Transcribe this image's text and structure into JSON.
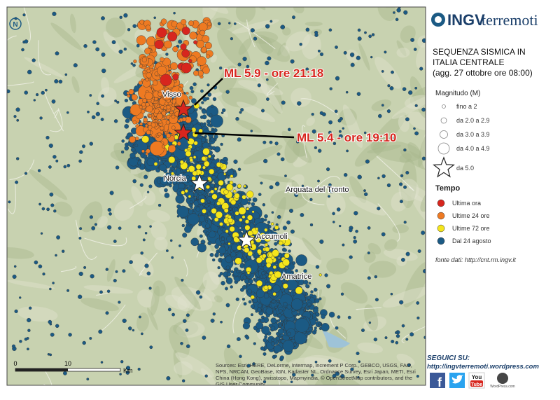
{
  "header": {
    "logo_prefix": "INGV",
    "logo_suffix": "terremoti",
    "title_line1": "SEQUENZA SISMICA IN",
    "title_line2": "ITALIA CENTRALE",
    "update": "(agg. 27 ottobre ore 08:00)"
  },
  "legend": {
    "magnitude_title": "Magnitudo (M)",
    "magnitude": [
      "fino a 2",
      "da 2.0 a 2.9",
      "da 3.0 a 3.9",
      "da 4.0 a 4.9",
      "da 5.0"
    ],
    "time_title": "Tempo",
    "time": [
      {
        "label": "Ultima ora",
        "color": "#d7261e"
      },
      {
        "label": "Ultime 24 ore",
        "color": "#ee7a22"
      },
      {
        "label": "Ultime 72 ore",
        "color": "#f4e51c"
      },
      {
        "label": "Dal 24 agosto",
        "color": "#1b5a84"
      }
    ]
  },
  "source": "fonte dati: http://cnt.rm.ingv.it",
  "follow": {
    "title": "SEGUICI SU:",
    "url": "http://ingvterremoti.wordpress.com",
    "facebook": "f",
    "youtube_top": "You",
    "youtube_bottom": "Tube",
    "wordpress": "WordPress.com"
  },
  "map": {
    "north": "N",
    "annotations": [
      "ML 5.9 - ore 21:18",
      "ML 5.4 - ore 19:10"
    ],
    "places": [
      "Visso",
      "Norcia",
      "Arquata del Tronto",
      "Accumoli",
      "Amatrice"
    ],
    "scale": [
      "0",
      "10",
      "Km"
    ],
    "attribution": [
      "Sources: Esri, HERE, DeLorme, Intermap, increment P Corp., GEBCO, USGS, FAO,",
      "NPS, NRCAN, GeoBase, IGN, Kadaster NL, Ordnance Survey, Esri Japan, METI, Esri",
      "China (Hong Kong), swisstopo, Mapmyindia, © OpenStreetMap contributors, and the",
      "GIS User Community"
    ]
  }
}
